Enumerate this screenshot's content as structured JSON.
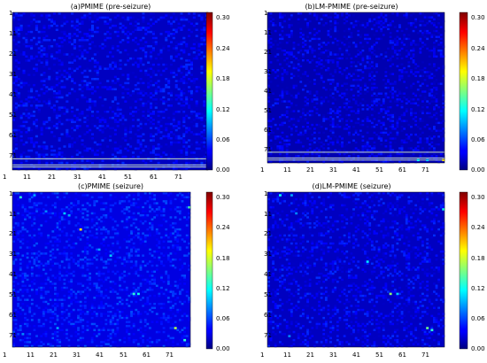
{
  "chart_data": [
    {
      "type": "heatmap",
      "title": "(a)PMIME (pre-seizure)",
      "size": 77,
      "tick_labels": [
        "1",
        "11",
        "21",
        "31",
        "41",
        "51",
        "61",
        "71"
      ],
      "colorbar_ticks": [
        "0.00",
        "0.06",
        "0.12",
        "0.18",
        "0.24",
        "0.30"
      ],
      "vmin": 0,
      "vmax": 0.31,
      "background_value": 0.02,
      "line_rows": [
        72,
        75,
        76
      ],
      "line_value": 0.2,
      "hotspots": []
    },
    {
      "type": "heatmap",
      "title": "(b)LM-PMIME (pre-seizure)",
      "size": 77,
      "tick_labels": [
        "1",
        "11",
        "21",
        "31",
        "41",
        "51",
        "61",
        "71"
      ],
      "colorbar_ticks": [
        "0.00",
        "0.06",
        "0.12",
        "0.18",
        "0.24",
        "0.30"
      ],
      "vmin": 0,
      "vmax": 0.31,
      "background_value": 0.015,
      "line_rows": [
        72,
        75,
        76
      ],
      "line_value": 0.18,
      "hotspots": [
        {
          "row": 76,
          "col": 77,
          "value": 0.2
        },
        {
          "row": 76,
          "col": 66,
          "value": 0.12
        },
        {
          "row": 76,
          "col": 70,
          "value": 0.1
        }
      ]
    },
    {
      "type": "heatmap",
      "title": "(c)PMIME (seizure)",
      "size": 77,
      "tick_labels": [
        "1",
        "11",
        "21",
        "31",
        "41",
        "51",
        "61",
        "71"
      ],
      "colorbar_ticks": [
        "0.00",
        "0.06",
        "0.12",
        "0.18",
        "0.24",
        "0.30"
      ],
      "vmin": 0,
      "vmax": 0.31,
      "background_value": 0.03,
      "line_rows": [],
      "line_value": 0,
      "hotspots": [
        {
          "row": 3,
          "col": 4,
          "value": 0.13
        },
        {
          "row": 2,
          "col": 10,
          "value": 0.09
        },
        {
          "row": 8,
          "col": 77,
          "value": 0.14
        },
        {
          "row": 10,
          "col": 15,
          "value": 0.08
        },
        {
          "row": 11,
          "col": 23,
          "value": 0.1
        },
        {
          "row": 12,
          "col": 25,
          "value": 0.09
        },
        {
          "row": 19,
          "col": 30,
          "value": 0.2
        },
        {
          "row": 29,
          "col": 38,
          "value": 0.09
        },
        {
          "row": 32,
          "col": 43,
          "value": 0.1
        },
        {
          "row": 51,
          "col": 53,
          "value": 0.13
        },
        {
          "row": 51,
          "col": 55,
          "value": 0.12
        },
        {
          "row": 68,
          "col": 71,
          "value": 0.17
        },
        {
          "row": 68,
          "col": 20,
          "value": 0.09
        },
        {
          "row": 74,
          "col": 75,
          "value": 0.13
        },
        {
          "row": 71,
          "col": 5,
          "value": 0.08
        }
      ]
    },
    {
      "type": "heatmap",
      "title": "(d)LM-PMIME (seizure)",
      "size": 77,
      "tick_labels": [
        "1",
        "11",
        "21",
        "31",
        "41",
        "51",
        "61",
        "71"
      ],
      "colorbar_ticks": [
        "0.00",
        "0.06",
        "0.12",
        "0.18",
        "0.24",
        "0.30"
      ],
      "vmin": 0,
      "vmax": 0.31,
      "background_value": 0.02,
      "line_rows": [],
      "line_value": 0,
      "hotspots": [
        {
          "row": 2,
          "col": 6,
          "value": 0.12
        },
        {
          "row": 2,
          "col": 11,
          "value": 0.09
        },
        {
          "row": 9,
          "col": 77,
          "value": 0.12
        },
        {
          "row": 11,
          "col": 13,
          "value": 0.08
        },
        {
          "row": 35,
          "col": 44,
          "value": 0.11
        },
        {
          "row": 51,
          "col": 54,
          "value": 0.16
        },
        {
          "row": 51,
          "col": 57,
          "value": 0.1
        },
        {
          "row": 68,
          "col": 70,
          "value": 0.15
        },
        {
          "row": 69,
          "col": 72,
          "value": 0.13
        },
        {
          "row": 72,
          "col": 10,
          "value": 0.08
        }
      ]
    }
  ]
}
